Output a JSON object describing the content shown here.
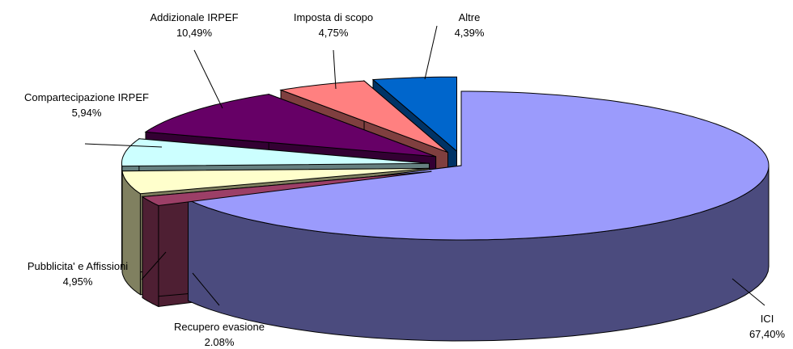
{
  "chart_data": {
    "type": "pie",
    "style": "3d-exploded",
    "title": "",
    "legend": "none",
    "slices": [
      {
        "name": "ICI",
        "percent_label": "67,40%",
        "value": 67.4,
        "color": "#9b9bfc",
        "side_color": "#4b4b7e"
      },
      {
        "name": "Recupero evasione",
        "percent_label": "2.08%",
        "value": 2.08,
        "color": "#9c3f67",
        "side_color": "#4e1f33"
      },
      {
        "name": "Pubblicita' e Affissioni",
        "percent_label": "4,95%",
        "value": 4.95,
        "color": "#ffffcc",
        "side_color": "#808060"
      },
      {
        "name": "Compartecipazione IRPEF",
        "percent_label": "5,94%",
        "value": 5.94,
        "color": "#ccffff",
        "side_color": "#668080"
      },
      {
        "name": "Addizionale IRPEF",
        "percent_label": "10,49%",
        "value": 10.49,
        "color": "#660066",
        "side_color": "#330033"
      },
      {
        "name": "Imposta di scopo",
        "percent_label": "4,75%",
        "value": 4.75,
        "color": "#ff8080",
        "side_color": "#7f3f3f"
      },
      {
        "name": "Altre",
        "percent_label": "4,39%",
        "value": 4.39,
        "color": "#0066cc",
        "side_color": "#003366"
      }
    ]
  }
}
